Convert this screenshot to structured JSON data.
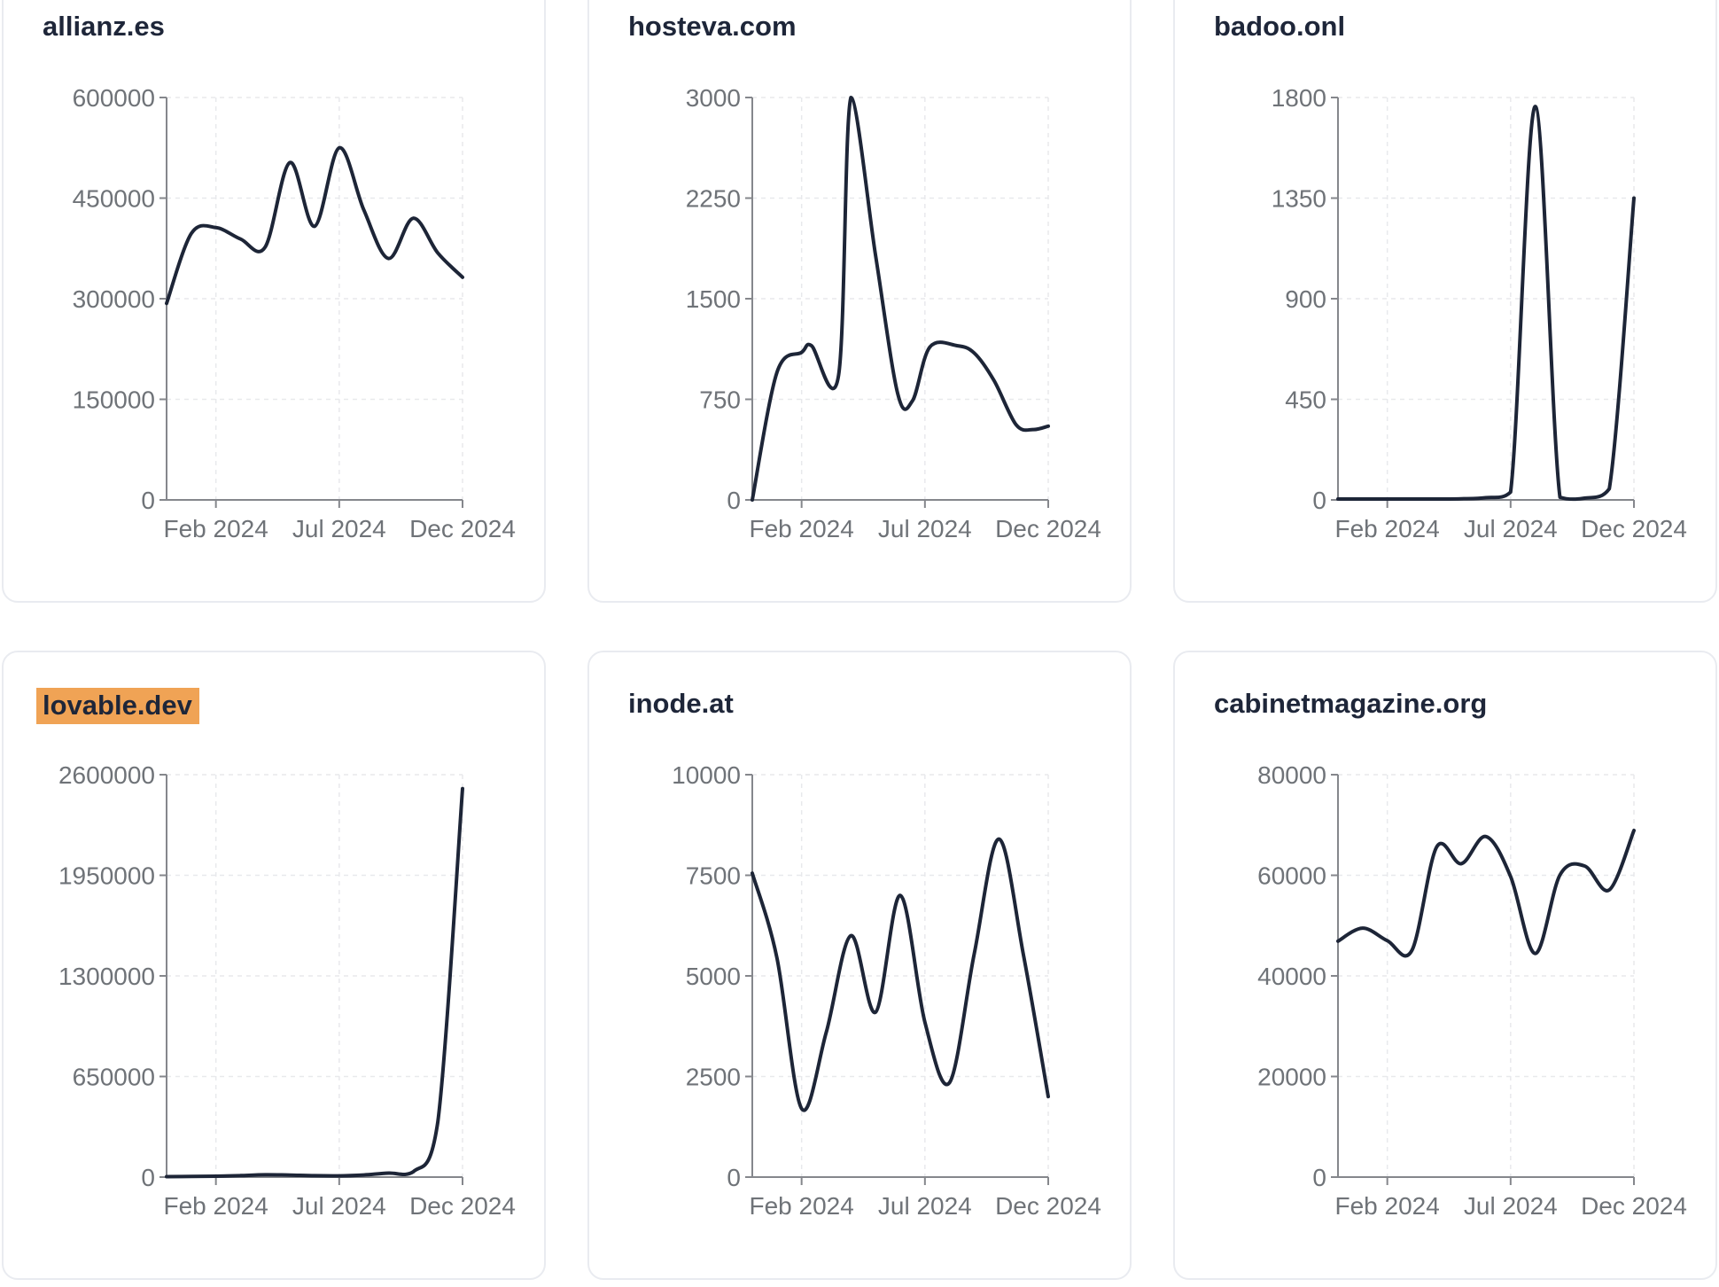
{
  "colors": {
    "line": "#1d2537",
    "title": "#1e2639",
    "tick_label": "#6f7378",
    "axis_line": "#85878c",
    "gridline": "#e8e9ec",
    "card_border": "#e9ebf0",
    "card_background": "#ffffff",
    "page_background": "#ffffff",
    "highlight_background": "#f0a355"
  },
  "x_axis": {
    "tick_labels": [
      "Feb 2024",
      "Jul 2024",
      "Dec 2024"
    ],
    "tick_months": [
      2,
      7,
      12
    ]
  },
  "chart_data": [
    {
      "type": "line",
      "title": "allianz.es",
      "highlighted": false,
      "x_domain": [
        "Dec 2023",
        "Dec 2024"
      ],
      "x_tick_labels": [
        "Feb 2024",
        "Jul 2024",
        "Dec 2024"
      ],
      "x_tick_months": [
        2,
        7,
        12
      ],
      "y_ticks": [
        0,
        150000,
        300000,
        450000,
        600000
      ],
      "ylim": [
        0,
        600000
      ],
      "grid": true,
      "points": [
        [
          0,
          293000
        ],
        [
          1,
          397000
        ],
        [
          2,
          406000
        ],
        [
          3,
          389000
        ],
        [
          4,
          377000
        ],
        [
          5,
          503000
        ],
        [
          6,
          408000
        ],
        [
          7,
          525000
        ],
        [
          8,
          432000
        ],
        [
          9,
          360000
        ],
        [
          10,
          420000
        ],
        [
          11,
          368000
        ],
        [
          12,
          332000
        ]
      ]
    },
    {
      "type": "line",
      "title": "hosteva.com",
      "highlighted": false,
      "x_domain": [
        "Dec 2023",
        "Dec 2024"
      ],
      "x_tick_labels": [
        "Feb 2024",
        "Jul 2024",
        "Dec 2024"
      ],
      "x_tick_months": [
        2,
        7,
        12
      ],
      "y_ticks": [
        0,
        750,
        1500,
        2250,
        3000
      ],
      "ylim": [
        0,
        3000
      ],
      "grid": true,
      "points": [
        [
          0,
          0
        ],
        [
          1,
          950
        ],
        [
          2,
          1100
        ],
        [
          2.4,
          1150
        ],
        [
          3.5,
          930
        ],
        [
          4,
          3000
        ],
        [
          5,
          1820
        ],
        [
          5.9,
          790
        ],
        [
          6.5,
          740
        ],
        [
          7.2,
          1140
        ],
        [
          8.3,
          1150
        ],
        [
          9,
          1095
        ],
        [
          9.8,
          890
        ],
        [
          10.7,
          560
        ],
        [
          11.4,
          525
        ],
        [
          12,
          550
        ]
      ]
    },
    {
      "type": "line",
      "title": "badoo.onl",
      "highlighted": false,
      "x_domain": [
        "Dec 2023",
        "Dec 2024"
      ],
      "x_tick_labels": [
        "Feb 2024",
        "Jul 2024",
        "Dec 2024"
      ],
      "x_tick_months": [
        2,
        7,
        12
      ],
      "y_ticks": [
        0,
        450,
        900,
        1350,
        1800
      ],
      "ylim": [
        0,
        1800
      ],
      "grid": true,
      "points": [
        [
          0,
          4
        ],
        [
          1,
          4
        ],
        [
          2,
          4
        ],
        [
          3,
          4
        ],
        [
          4,
          4
        ],
        [
          5,
          5
        ],
        [
          6,
          10
        ],
        [
          7,
          35
        ],
        [
          8,
          1760
        ],
        [
          9,
          12
        ],
        [
          10,
          8
        ],
        [
          11,
          50
        ],
        [
          12,
          1350
        ]
      ]
    },
    {
      "type": "line",
      "title": "lovable.dev",
      "highlighted": true,
      "x_domain": [
        "Dec 2023",
        "Dec 2024"
      ],
      "x_tick_labels": [
        "Feb 2024",
        "Jul 2024",
        "Dec 2024"
      ],
      "x_tick_months": [
        2,
        7,
        12
      ],
      "y_ticks": [
        0,
        650000,
        1300000,
        1950000,
        2600000
      ],
      "ylim": [
        0,
        2600000
      ],
      "grid": true,
      "points": [
        [
          0,
          3000
        ],
        [
          1,
          4000
        ],
        [
          2,
          6000
        ],
        [
          3,
          10000
        ],
        [
          4,
          15000
        ],
        [
          5,
          13000
        ],
        [
          6,
          9000
        ],
        [
          7,
          8000
        ],
        [
          8,
          14000
        ],
        [
          9,
          26000
        ],
        [
          10,
          34000
        ],
        [
          11,
          360000
        ],
        [
          12,
          2510000
        ]
      ]
    },
    {
      "type": "line",
      "title": "inode.at",
      "highlighted": false,
      "x_domain": [
        "Dec 2023",
        "Dec 2024"
      ],
      "x_tick_labels": [
        "Feb 2024",
        "Jul 2024",
        "Dec 2024"
      ],
      "x_tick_months": [
        2,
        7,
        12
      ],
      "y_ticks": [
        0,
        2500,
        5000,
        7500,
        10000
      ],
      "ylim": [
        0,
        10000
      ],
      "grid": true,
      "points": [
        [
          0,
          7550
        ],
        [
          1,
          5450
        ],
        [
          2,
          1700
        ],
        [
          3,
          3600
        ],
        [
          4,
          6000
        ],
        [
          5,
          4100
        ],
        [
          6,
          7000
        ],
        [
          7,
          3850
        ],
        [
          8,
          2350
        ],
        [
          9,
          5550
        ],
        [
          10,
          8400
        ],
        [
          11,
          5500
        ],
        [
          12,
          2000
        ]
      ]
    },
    {
      "type": "line",
      "title": "cabinetmagazine.org",
      "highlighted": false,
      "x_domain": [
        "Dec 2023",
        "Dec 2024"
      ],
      "x_tick_labels": [
        "Feb 2024",
        "Jul 2024",
        "Dec 2024"
      ],
      "x_tick_months": [
        2,
        7,
        12
      ],
      "y_ticks": [
        0,
        20000,
        40000,
        60000,
        80000
      ],
      "ylim": [
        0,
        80000
      ],
      "grid": true,
      "points": [
        [
          0,
          46900
        ],
        [
          1,
          49500
        ],
        [
          2,
          47000
        ],
        [
          3,
          45100
        ],
        [
          4,
          65600
        ],
        [
          5,
          62300
        ],
        [
          6,
          67700
        ],
        [
          7,
          59750
        ],
        [
          8,
          44450
        ],
        [
          9,
          60050
        ],
        [
          10,
          61850
        ],
        [
          11,
          57100
        ],
        [
          12,
          68900
        ]
      ]
    }
  ]
}
